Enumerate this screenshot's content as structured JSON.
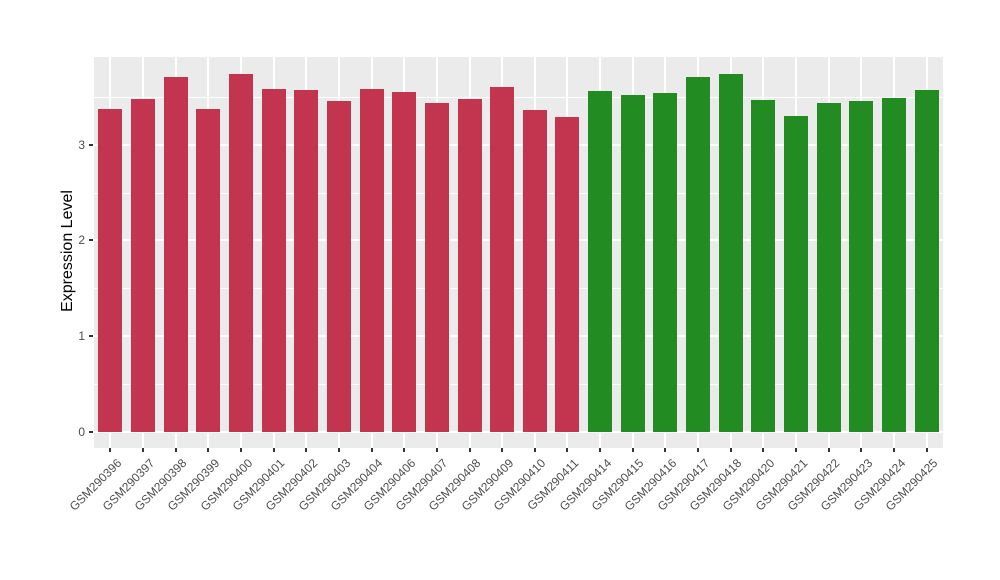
{
  "chart_data": {
    "type": "bar",
    "title": "",
    "xlabel": "",
    "ylabel": "Expression Level",
    "ylim": [
      0,
      3.9
    ],
    "yticks": [
      0,
      1,
      2,
      3
    ],
    "yticks_minor": [
      0.5,
      1.5,
      2.5,
      3.5
    ],
    "grid": "horizontal major+minor white lines, vertical white line at each category center, on gray panel",
    "legend_position": "none",
    "panel_background_color": "#EBEBEB",
    "gridline_color": "#FFFFFF",
    "axis_text_color": "#4D4D4D",
    "group_colors": {
      "group1": "#C3344F",
      "group2": "#228B22"
    },
    "bars": [
      {
        "label": "GSM290396",
        "value": 3.37,
        "color": "#C3344F"
      },
      {
        "label": "GSM290397",
        "value": 3.48,
        "color": "#C3344F"
      },
      {
        "label": "GSM290398",
        "value": 3.71,
        "color": "#C3344F"
      },
      {
        "label": "GSM290399",
        "value": 3.37,
        "color": "#C3344F"
      },
      {
        "label": "GSM290400",
        "value": 3.74,
        "color": "#C3344F"
      },
      {
        "label": "GSM290401",
        "value": 3.58,
        "color": "#C3344F"
      },
      {
        "label": "GSM290402",
        "value": 3.57,
        "color": "#C3344F"
      },
      {
        "label": "GSM290403",
        "value": 3.45,
        "color": "#C3344F"
      },
      {
        "label": "GSM290404",
        "value": 3.58,
        "color": "#C3344F"
      },
      {
        "label": "GSM290406",
        "value": 3.55,
        "color": "#C3344F"
      },
      {
        "label": "GSM290407",
        "value": 3.43,
        "color": "#C3344F"
      },
      {
        "label": "GSM290408",
        "value": 3.48,
        "color": "#C3344F"
      },
      {
        "label": "GSM290409",
        "value": 3.6,
        "color": "#C3344F"
      },
      {
        "label": "GSM290410",
        "value": 3.36,
        "color": "#C3344F"
      },
      {
        "label": "GSM290411",
        "value": 3.29,
        "color": "#C3344F"
      },
      {
        "label": "GSM290414",
        "value": 3.56,
        "color": "#228B22"
      },
      {
        "label": "GSM290415",
        "value": 3.52,
        "color": "#228B22"
      },
      {
        "label": "GSM290416",
        "value": 3.54,
        "color": "#228B22"
      },
      {
        "label": "GSM290417",
        "value": 3.71,
        "color": "#228B22"
      },
      {
        "label": "GSM290418",
        "value": 3.74,
        "color": "#228B22"
      },
      {
        "label": "GSM290420",
        "value": 3.47,
        "color": "#228B22"
      },
      {
        "label": "GSM290421",
        "value": 3.3,
        "color": "#228B22"
      },
      {
        "label": "GSM290422",
        "value": 3.43,
        "color": "#228B22"
      },
      {
        "label": "GSM290423",
        "value": 3.45,
        "color": "#228B22"
      },
      {
        "label": "GSM290424",
        "value": 3.49,
        "color": "#228B22"
      },
      {
        "label": "GSM290425",
        "value": 3.57,
        "color": "#228B22"
      }
    ]
  }
}
